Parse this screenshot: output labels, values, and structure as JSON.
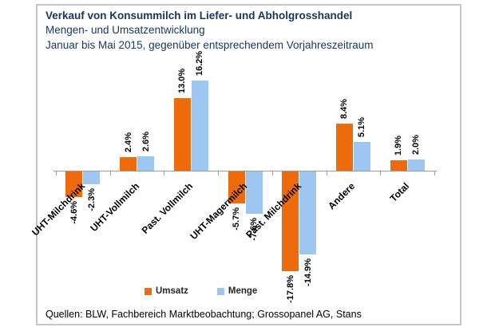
{
  "chart_data": {
    "type": "bar",
    "title": "Verkauf von Konsummilch im Liefer- und Abholgrosshandel",
    "subtitle": "Mengen- und Umsatzentwicklung",
    "period": "Januar bis Mai 2015, gegenüber entsprechendem Vorjahreszeitraum",
    "categories": [
      "UHT-Milchdrink",
      "UHT-Vollmilch",
      "Past. Vollmilch",
      "UHT-Magermilch",
      "Past. Milchdrink",
      "Andere",
      "Total"
    ],
    "series": [
      {
        "name": "Umsatz",
        "color": "#ee6b0c",
        "values": [
          -4.6,
          2.4,
          13.0,
          -5.7,
          -17.8,
          8.4,
          1.9
        ]
      },
      {
        "name": "Menge",
        "color": "#9dc7f0",
        "values": [
          -2.3,
          2.6,
          16.2,
          -7.6,
          -14.9,
          5.1,
          2.0
        ]
      }
    ],
    "value_suffix": "%",
    "value_decimals": 1,
    "ylim": [
      -20,
      18
    ],
    "grid": false,
    "legend_position": "bottom",
    "axis_color": "#9b9b9b",
    "title_color": "#17375d"
  },
  "footer": {
    "source": "Quellen: BLW, Fachbereich Marktbeobachtung; Grossopanel AG, Stans"
  }
}
